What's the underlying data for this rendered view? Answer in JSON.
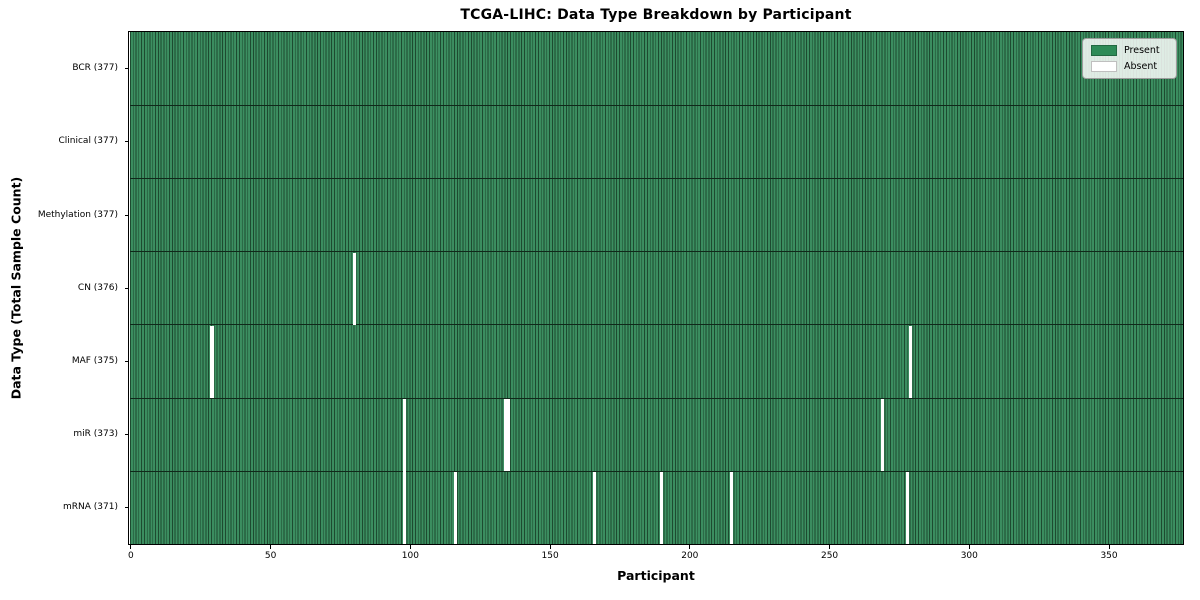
{
  "chart_data": {
    "type": "heatmap",
    "title": "TCGA-LIHC: Data Type Breakdown by Participant",
    "xlabel": "Participant",
    "ylabel": "Data Type (Total Sample Count)",
    "n_participants": 377,
    "x_ticks": [
      0,
      50,
      100,
      150,
      200,
      250,
      300,
      350
    ],
    "xlim": [
      -0.5,
      376.5
    ],
    "grid": false,
    "legend_position": "upper right",
    "colors": {
      "present": "#2e8b57",
      "absent": "#ffffff",
      "cell_edge": "#10291a",
      "legend_background": "#fbfdfb",
      "legend_border": "#9c9c9c"
    },
    "legend": [
      {
        "label": "Present",
        "color": "#2e8b57"
      },
      {
        "label": "Absent",
        "color": "#ffffff"
      }
    ],
    "rows": [
      {
        "data_type": "BCR",
        "label": "BCR (377)",
        "present_count": 377,
        "absent_participants": []
      },
      {
        "data_type": "Clinical",
        "label": "Clinical (377)",
        "present_count": 377,
        "absent_participants": []
      },
      {
        "data_type": "Methylation",
        "label": "Methylation (377)",
        "present_count": 377,
        "absent_participants": []
      },
      {
        "data_type": "CN",
        "label": "CN (376)",
        "present_count": 376,
        "absent_participants": [
          80
        ]
      },
      {
        "data_type": "MAF",
        "label": "MAF (375)",
        "present_count": 375,
        "absent_participants": [
          29,
          279
        ]
      },
      {
        "data_type": "miR",
        "label": "miR (373)",
        "present_count": 373,
        "absent_participants": [
          98,
          134,
          135,
          269
        ]
      },
      {
        "data_type": "mRNA",
        "label": "mRNA (371)",
        "present_count": 371,
        "absent_participants": [
          98,
          116,
          166,
          190,
          215,
          278
        ]
      }
    ]
  }
}
